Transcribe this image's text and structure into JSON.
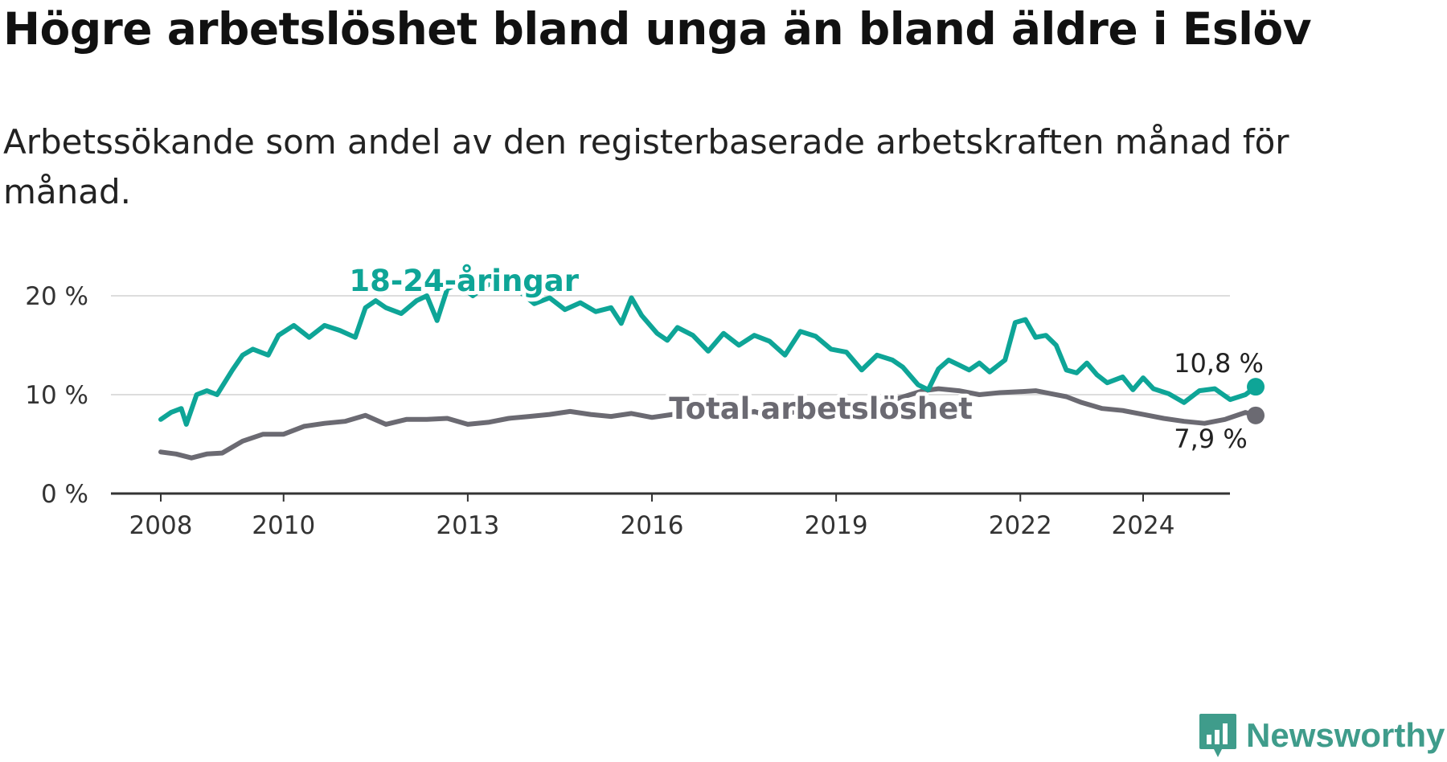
{
  "title": "Högre arbetslöshet bland unga än bland äldre i Eslöv",
  "subtitle": "Arbetssökande som andel av den registerbaserade arbetskraften månad för månad.",
  "brand": {
    "name": "Newsworthy",
    "icon": "newsworthy-logo-icon",
    "color": "#3f9c8b"
  },
  "colors": {
    "youth": "#0ea597",
    "total": "#6b6a72",
    "grid": "#dddddd",
    "axis": "#333333"
  },
  "chart_data": {
    "type": "line",
    "title": "Högre arbetslöshet bland unga än bland äldre i Eslöv",
    "subtitle": "Arbetssökande som andel av den registerbaserade arbetskraften månad för månad.",
    "xlabel": "",
    "ylabel": "",
    "ylim": [
      0,
      20
    ],
    "y_ticks": [
      0,
      10,
      20
    ],
    "y_tick_labels": [
      "0 %",
      "10 %",
      "20 %"
    ],
    "x_ticks": [
      2008,
      2010,
      2013,
      2016,
      2019,
      2022,
      2024
    ],
    "x_tick_labels": [
      "2008",
      "2010",
      "2013",
      "2016",
      "2019",
      "2022",
      "2024"
    ],
    "grid": "horizontal",
    "series": [
      {
        "name": "18-24-åringar",
        "color": "#0ea597",
        "end_label": "10,8 %",
        "points": [
          [
            "2008-01",
            7.5
          ],
          [
            "2008-03",
            8.2
          ],
          [
            "2008-05",
            8.6
          ],
          [
            "2008-06",
            7.0
          ],
          [
            "2008-08",
            10.0
          ],
          [
            "2008-10",
            10.4
          ],
          [
            "2008-12",
            10.0
          ],
          [
            "2009-03",
            12.5
          ],
          [
            "2009-05",
            14.0
          ],
          [
            "2009-07",
            14.6
          ],
          [
            "2009-10",
            14.0
          ],
          [
            "2009-12",
            16.0
          ],
          [
            "2010-03",
            17.0
          ],
          [
            "2010-06",
            15.8
          ],
          [
            "2010-09",
            17.0
          ],
          [
            "2010-12",
            16.5
          ],
          [
            "2011-03",
            15.8
          ],
          [
            "2011-05",
            18.8
          ],
          [
            "2011-07",
            19.5
          ],
          [
            "2011-09",
            18.8
          ],
          [
            "2011-12",
            18.2
          ],
          [
            "2012-03",
            19.5
          ],
          [
            "2012-05",
            20.0
          ],
          [
            "2012-07",
            17.5
          ],
          [
            "2012-09",
            20.7
          ],
          [
            "2012-11",
            21.2
          ],
          [
            "2013-02",
            20.0
          ],
          [
            "2013-06",
            21.5
          ],
          [
            "2013-09",
            22.0
          ],
          [
            "2013-11",
            20.5
          ],
          [
            "2014-02",
            19.2
          ],
          [
            "2014-05",
            19.8
          ],
          [
            "2014-08",
            18.6
          ],
          [
            "2014-11",
            19.3
          ],
          [
            "2015-02",
            18.4
          ],
          [
            "2015-05",
            18.8
          ],
          [
            "2015-07",
            17.2
          ],
          [
            "2015-09",
            19.8
          ],
          [
            "2015-11",
            18.0
          ],
          [
            "2016-02",
            16.2
          ],
          [
            "2016-04",
            15.5
          ],
          [
            "2016-06",
            16.8
          ],
          [
            "2016-09",
            16.0
          ],
          [
            "2016-12",
            14.4
          ],
          [
            "2017-03",
            16.2
          ],
          [
            "2017-06",
            15.0
          ],
          [
            "2017-09",
            16.0
          ],
          [
            "2017-12",
            15.4
          ],
          [
            "2018-03",
            14.0
          ],
          [
            "2018-06",
            16.4
          ],
          [
            "2018-09",
            15.9
          ],
          [
            "2018-12",
            14.6
          ],
          [
            "2019-03",
            14.3
          ],
          [
            "2019-06",
            12.5
          ],
          [
            "2019-09",
            14.0
          ],
          [
            "2019-12",
            13.5
          ],
          [
            "2020-02",
            12.8
          ],
          [
            "2020-05",
            11.0
          ],
          [
            "2020-07",
            10.5
          ],
          [
            "2020-09",
            12.6
          ],
          [
            "2020-11",
            13.5
          ],
          [
            "2021-01",
            13.0
          ],
          [
            "2021-03",
            12.5
          ],
          [
            "2021-05",
            13.2
          ],
          [
            "2021-07",
            12.3
          ],
          [
            "2021-10",
            13.5
          ],
          [
            "2021-12",
            17.3
          ],
          [
            "2022-02",
            17.6
          ],
          [
            "2022-04",
            15.8
          ],
          [
            "2022-06",
            16.0
          ],
          [
            "2022-08",
            15.0
          ],
          [
            "2022-10",
            12.5
          ],
          [
            "2022-12",
            12.2
          ],
          [
            "2023-02",
            13.2
          ],
          [
            "2023-04",
            12.0
          ],
          [
            "2023-06",
            11.2
          ],
          [
            "2023-09",
            11.8
          ],
          [
            "2023-11",
            10.5
          ],
          [
            "2024-01",
            11.7
          ],
          [
            "2024-03",
            10.6
          ],
          [
            "2024-06",
            10.1
          ],
          [
            "2024-09",
            9.2
          ],
          [
            "2024-12",
            10.4
          ],
          [
            "2025-03",
            10.6
          ],
          [
            "2025-06",
            9.5
          ],
          [
            "2025-09",
            10.0
          ],
          [
            "2025-11",
            10.8
          ]
        ]
      },
      {
        "name": "Total arbetslöshet",
        "color": "#6b6a72",
        "end_label": "7,9 %",
        "points": [
          [
            "2008-01",
            4.2
          ],
          [
            "2008-04",
            4.0
          ],
          [
            "2008-07",
            3.6
          ],
          [
            "2008-10",
            4.0
          ],
          [
            "2009-01",
            4.1
          ],
          [
            "2009-05",
            5.3
          ],
          [
            "2009-09",
            6.0
          ],
          [
            "2010-01",
            6.0
          ],
          [
            "2010-05",
            6.8
          ],
          [
            "2010-09",
            7.1
          ],
          [
            "2011-01",
            7.3
          ],
          [
            "2011-05",
            7.9
          ],
          [
            "2011-09",
            7.0
          ],
          [
            "2012-01",
            7.5
          ],
          [
            "2012-05",
            7.5
          ],
          [
            "2012-09",
            7.6
          ],
          [
            "2013-01",
            7.0
          ],
          [
            "2013-05",
            7.2
          ],
          [
            "2013-09",
            7.6
          ],
          [
            "2014-01",
            7.8
          ],
          [
            "2014-05",
            8.0
          ],
          [
            "2014-09",
            8.3
          ],
          [
            "2015-01",
            8.0
          ],
          [
            "2015-05",
            7.8
          ],
          [
            "2015-09",
            8.1
          ],
          [
            "2016-01",
            7.7
          ],
          [
            "2016-05",
            8.0
          ],
          [
            "2016-09",
            8.3
          ],
          [
            "2017-01",
            7.9
          ],
          [
            "2017-05",
            7.9
          ],
          [
            "2017-09",
            8.3
          ],
          [
            "2018-01",
            7.6
          ],
          [
            "2018-05",
            8.3
          ],
          [
            "2018-09",
            7.9
          ],
          [
            "2019-01",
            8.4
          ],
          [
            "2019-05",
            8.9
          ],
          [
            "2019-09",
            9.2
          ],
          [
            "2020-01",
            9.6
          ],
          [
            "2020-06",
            10.4
          ],
          [
            "2020-09",
            10.6
          ],
          [
            "2021-01",
            10.4
          ],
          [
            "2021-05",
            10.0
          ],
          [
            "2021-09",
            10.2
          ],
          [
            "2022-01",
            10.3
          ],
          [
            "2022-04",
            10.4
          ],
          [
            "2022-07",
            10.1
          ],
          [
            "2022-10",
            9.8
          ],
          [
            "2023-01",
            9.2
          ],
          [
            "2023-05",
            8.6
          ],
          [
            "2023-09",
            8.4
          ],
          [
            "2024-01",
            8.0
          ],
          [
            "2024-05",
            7.6
          ],
          [
            "2024-09",
            7.3
          ],
          [
            "2025-01",
            7.1
          ],
          [
            "2025-05",
            7.5
          ],
          [
            "2025-09",
            8.2
          ],
          [
            "2025-11",
            7.9
          ]
        ]
      }
    ]
  }
}
